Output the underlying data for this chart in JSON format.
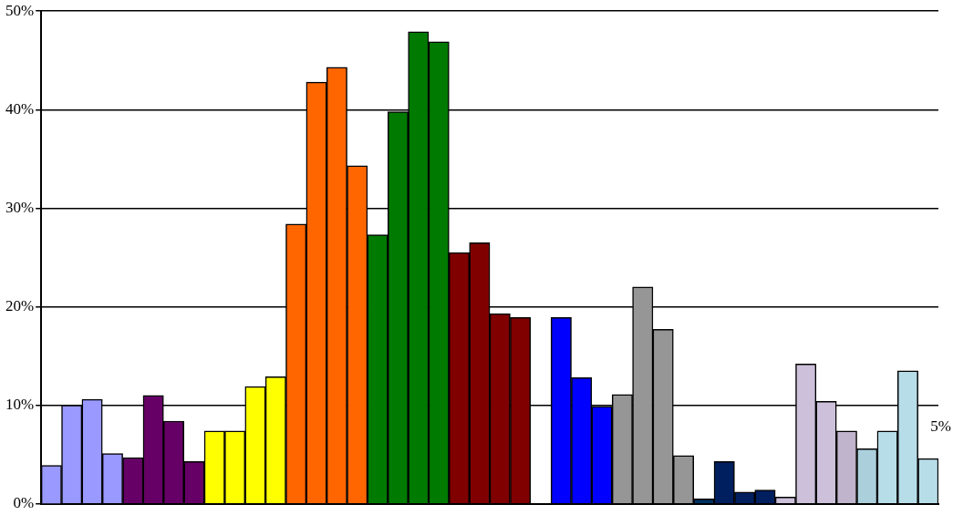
{
  "chart_data": {
    "type": "bar",
    "categories": [
      null,
      null,
      null,
      null,
      null,
      null,
      null,
      null,
      null,
      null,
      null,
      null,
      null,
      null,
      null,
      null,
      null,
      null,
      null,
      null,
      null,
      null,
      null,
      null,
      null,
      null,
      null,
      null,
      null,
      null,
      null,
      null,
      null,
      null,
      null,
      null,
      null,
      null,
      null,
      null,
      null,
      null,
      null,
      null
    ],
    "values": [
      3.9,
      10.0,
      10.6,
      5.1,
      4.7,
      11.0,
      8.4,
      4.3,
      7.4,
      7.4,
      11.9,
      12.9,
      28.4,
      42.8,
      44.3,
      34.3,
      27.3,
      39.8,
      47.9,
      46.9,
      25.5,
      26.5,
      19.3,
      18.9,
      null,
      18.9,
      12.8,
      9.9,
      11.1,
      22.0,
      17.7,
      4.9,
      0.5,
      4.3,
      1.2,
      1.4,
      0.7,
      14.2,
      10.4,
      7.4,
      5.6,
      7.4,
      13.5,
      4.6
    ],
    "colors": [
      "#9999ff",
      "#9999ff",
      "#9999ff",
      "#9999ff",
      "#660066",
      "#660066",
      "#660066",
      "#660066",
      "#ffff00",
      "#ffff00",
      "#ffff00",
      "#ffff00",
      "#ff6600",
      "#ff6600",
      "#ff6600",
      "#ff6600",
      "#007a00",
      "#007a00",
      "#007a00",
      "#007a00",
      "#800000",
      "#800000",
      "#800000",
      "#800000",
      "#ffffff",
      "#0000ff",
      "#0000ff",
      "#0000ff",
      "#969696",
      "#969696",
      "#969696",
      "#969696",
      "#003366",
      "#001f5f",
      "#001f5f",
      "#001f5f",
      "#ccc0da",
      "#ccc0da",
      "#ccc0da",
      "#bfb4cc",
      "#abd0dc",
      "#b7dde8",
      "#b7dde8",
      "#b7dde8"
    ],
    "ylim": [
      0,
      50
    ],
    "yticks": [
      {
        "value": 0,
        "label": "0%"
      },
      {
        "value": 10,
        "label": "10%"
      },
      {
        "value": 20,
        "label": "20%"
      },
      {
        "value": 30,
        "label": "30%"
      },
      {
        "value": 40,
        "label": "40%"
      },
      {
        "value": 50,
        "label": "50%"
      }
    ],
    "grid": "y",
    "legend": false,
    "tick_labels": "y",
    "annotations": [
      "5%"
    ]
  }
}
